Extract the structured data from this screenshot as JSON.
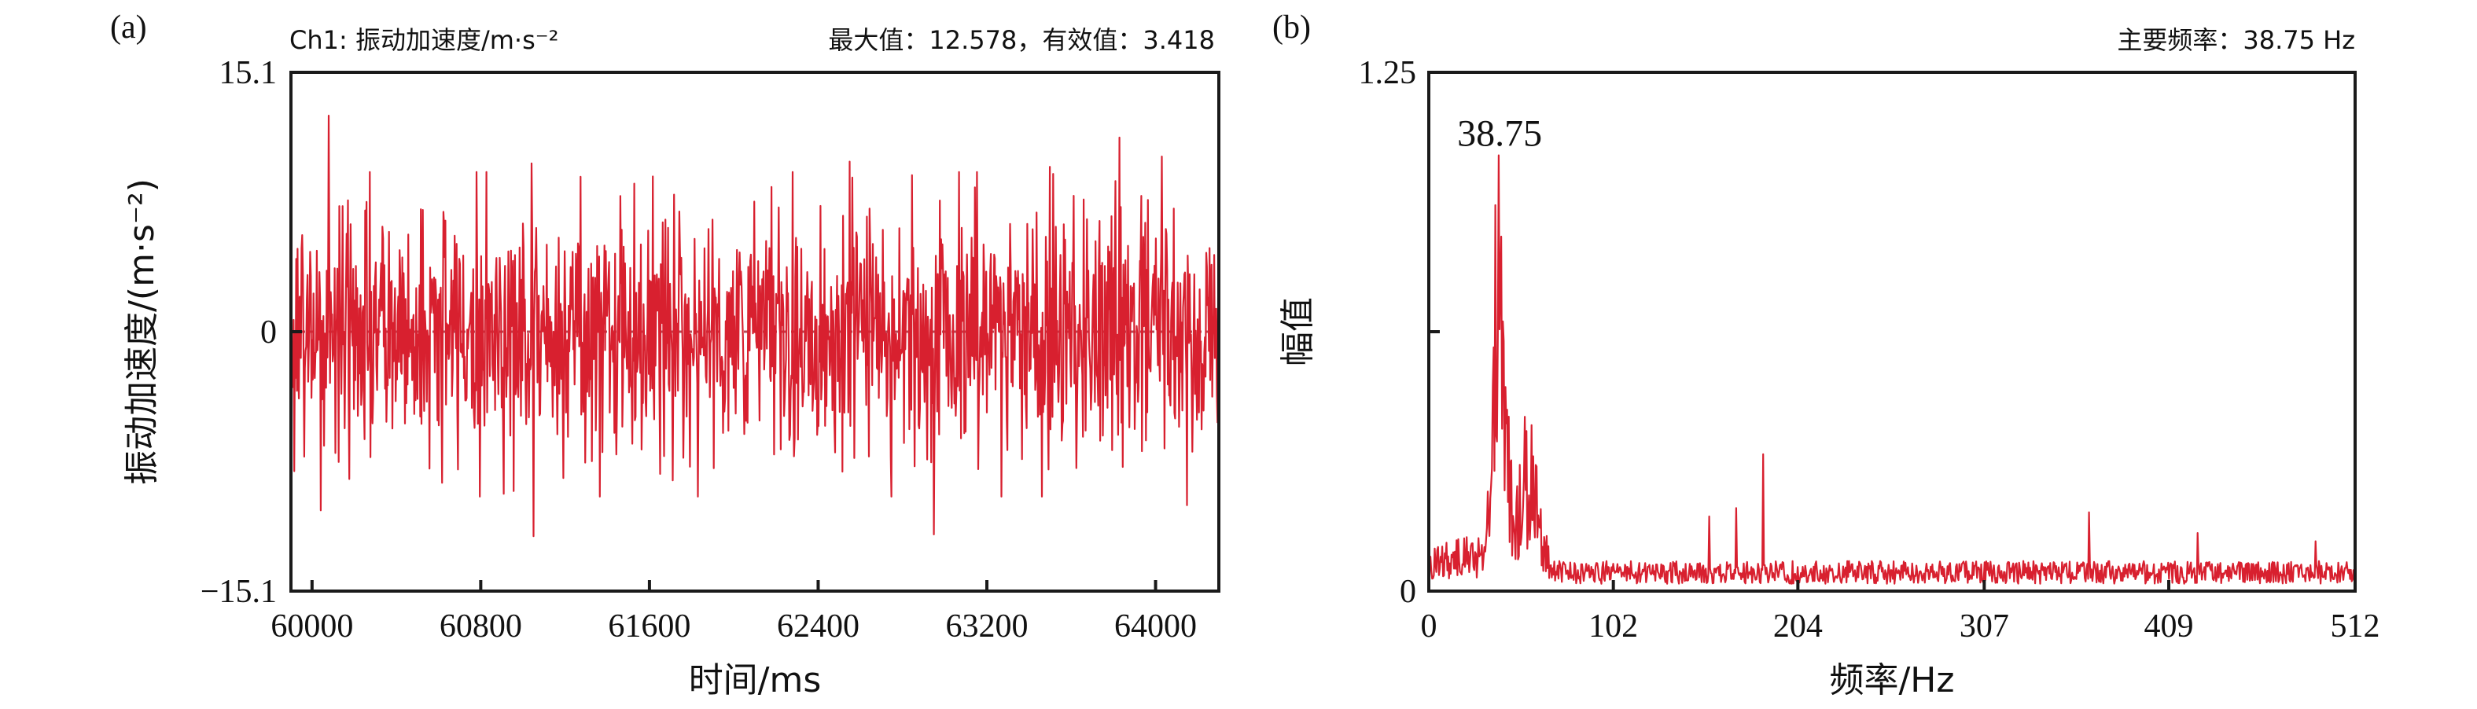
{
  "colors": {
    "signal": "#d8202f",
    "axis": "#1a1a1a",
    "background": "#ffffff"
  },
  "chart_data": [
    {
      "type": "line",
      "panel_label": "(a)",
      "header_left": "Ch1: 振动加速度/m·s⁻²",
      "header_right": "最大值：12.578，有效值：3.418",
      "xlabel": "时间/ms",
      "ylabel": "振动加速度/(m·s⁻²)",
      "xlim": [
        59900,
        64300
      ],
      "ylim": [
        -15.1,
        15.1
      ],
      "x_ticks": [
        60000,
        60800,
        61600,
        62400,
        63200,
        64000
      ],
      "y_ticks": [
        -15.1,
        0,
        15.1
      ],
      "x_tick_labels": [
        "60000",
        "60800",
        "61600",
        "62400",
        "63200",
        "64000"
      ],
      "y_tick_labels": [
        "−15.1",
        "0",
        "15.1"
      ],
      "signal_stats": {
        "max": 12.578,
        "rms": 3.418
      },
      "series": [
        {
          "x_start": 59900,
          "x_end": 64300,
          "peaks": [
            {
              "x": 60080,
              "y": 12.578
            },
            {
              "x": 60040,
              "y": -10.4
            },
            {
              "x": 61050,
              "y": -11.9
            },
            {
              "x": 61040,
              "y": 9.8
            },
            {
              "x": 62950,
              "y": -11.8
            },
            {
              "x": 63830,
              "y": 11.3
            },
            {
              "x": 64030,
              "y": 10.2
            },
            {
              "x": 63500,
              "y": 9.6
            },
            {
              "x": 62550,
              "y": 9.9
            },
            {
              "x": 64150,
              "y": -10.1
            }
          ]
        }
      ]
    },
    {
      "type": "line",
      "panel_label": "(b)",
      "header_right": "主要频率：38.75 Hz",
      "xlabel": "频率/Hz",
      "ylabel": "幅值",
      "xlim": [
        0,
        512
      ],
      "ylim": [
        0,
        1.25
      ],
      "x_ticks": [
        0,
        102,
        204,
        307,
        409,
        512
      ],
      "y_ticks": [
        0,
        1.25
      ],
      "x_tick_labels": [
        "0",
        "102",
        "204",
        "307",
        "409",
        "512"
      ],
      "y_tick_labels": [
        "0",
        "1.25"
      ],
      "annotation": {
        "text": "38.75",
        "x": 38.75,
        "y": 1.05
      },
      "series": [
        {
          "peaks": [
            {
              "x": 38.75,
              "y": 1.05
            },
            {
              "x": 37.0,
              "y": 0.93
            },
            {
              "x": 41.0,
              "y": 0.65
            },
            {
              "x": 53.0,
              "y": 0.42
            },
            {
              "x": 57.0,
              "y": 0.4
            },
            {
              "x": 155.0,
              "y": 0.18
            },
            {
              "x": 170.0,
              "y": 0.2
            },
            {
              "x": 185.0,
              "y": 0.33
            },
            {
              "x": 365.0,
              "y": 0.19
            },
            {
              "x": 425.0,
              "y": 0.14
            },
            {
              "x": 490.0,
              "y": 0.12
            }
          ],
          "noise_floor": 0.05
        }
      ]
    }
  ]
}
